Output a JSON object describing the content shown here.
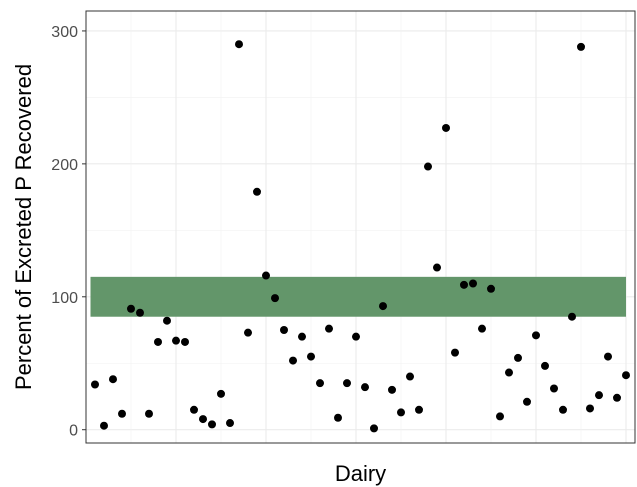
{
  "chart_data": {
    "type": "scatter",
    "title": "",
    "xlabel": "Dairy",
    "ylabel": "Percent of Excreted P Recovered",
    "x": [
      1,
      2,
      3,
      4,
      5,
      6,
      7,
      8,
      9,
      10,
      11,
      12,
      13,
      14,
      15,
      16,
      17,
      18,
      19,
      20,
      21,
      22,
      23,
      24,
      25,
      26,
      27,
      28,
      29,
      30,
      31,
      32,
      33,
      34,
      35,
      36,
      37,
      38,
      39,
      40,
      41,
      42,
      43,
      44,
      45,
      46,
      47,
      48,
      49,
      50,
      51,
      52,
      53,
      54,
      55,
      56,
      57,
      58,
      59,
      60
    ],
    "y": [
      34,
      3,
      38,
      12,
      91,
      88,
      12,
      66,
      82,
      67,
      66,
      15,
      8,
      4,
      27,
      5,
      290,
      73,
      179,
      116,
      99,
      75,
      52,
      70,
      55,
      35,
      76,
      9,
      35,
      70,
      32,
      1,
      93,
      30,
      13,
      40,
      15,
      198,
      122,
      227,
      58,
      109,
      110,
      76,
      106,
      10,
      43,
      54,
      21,
      71,
      48,
      31,
      15,
      85,
      288,
      16,
      26,
      55,
      24,
      41
    ],
    "ylim": [
      -10,
      315
    ],
    "xlim": [
      0,
      61
    ],
    "y_ticks": [
      0,
      100,
      200,
      300
    ],
    "y_tick_labels": [
      "0",
      "100",
      "200",
      "300"
    ],
    "band": {
      "ymin": 85,
      "ymax": 115,
      "xmin": 0.5,
      "xmax": 60,
      "color": "#63966a"
    },
    "point_color": "#000000",
    "grid": true,
    "theme": "bw"
  }
}
